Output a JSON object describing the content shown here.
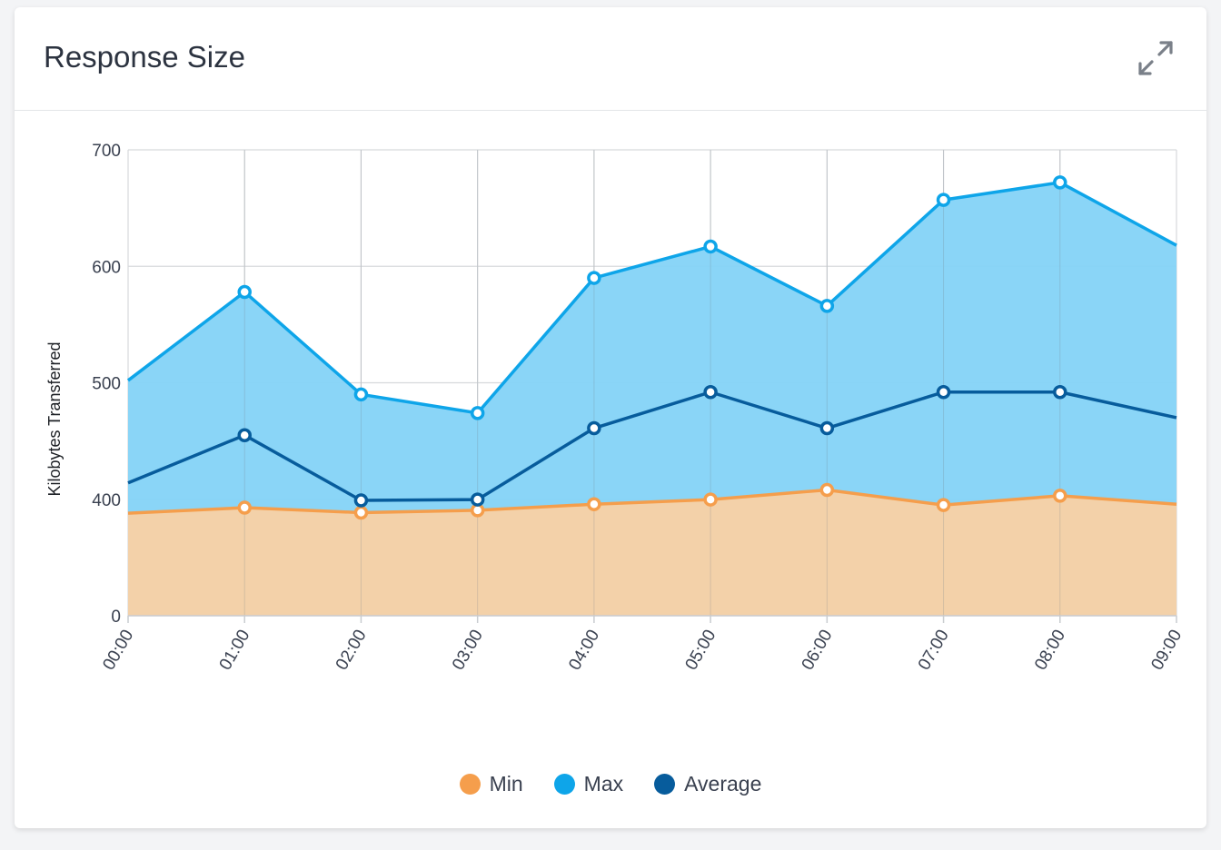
{
  "card": {
    "title": "Response Size",
    "expand_icon": "expand-arrows-icon"
  },
  "chart_data": {
    "type": "area",
    "title": "Response Size",
    "xlabel": "",
    "ylabel": "Kilobytes Transferred",
    "categories": [
      "00:00",
      "01:00",
      "02:00",
      "03:00",
      "04:00",
      "05:00",
      "06:00",
      "07:00",
      "08:00",
      "09:00"
    ],
    "y_ticks": [
      "0",
      "400",
      "500",
      "600",
      "700"
    ],
    "y_axis_note": "axis is broken: ticks 0 then 400–700",
    "ylim": [
      0,
      700
    ],
    "grid": true,
    "legend_position": "bottom",
    "series": [
      {
        "name": "Min",
        "color": "#f59e4c",
        "fill": "#f9d1a4",
        "values": [
          352,
          371,
          354,
          362,
          383,
          399,
          408,
          380,
          403,
          383
        ]
      },
      {
        "name": "Max",
        "color": "#0ea5e9",
        "fill": "#84d3f7",
        "values": [
          502,
          578,
          490,
          474,
          590,
          617,
          566,
          657,
          672,
          618
        ]
      },
      {
        "name": "Average",
        "color": "#075c9c",
        "fill": null,
        "values": [
          414,
          455,
          396,
          399,
          461,
          492,
          461,
          492,
          492,
          470
        ]
      }
    ]
  }
}
